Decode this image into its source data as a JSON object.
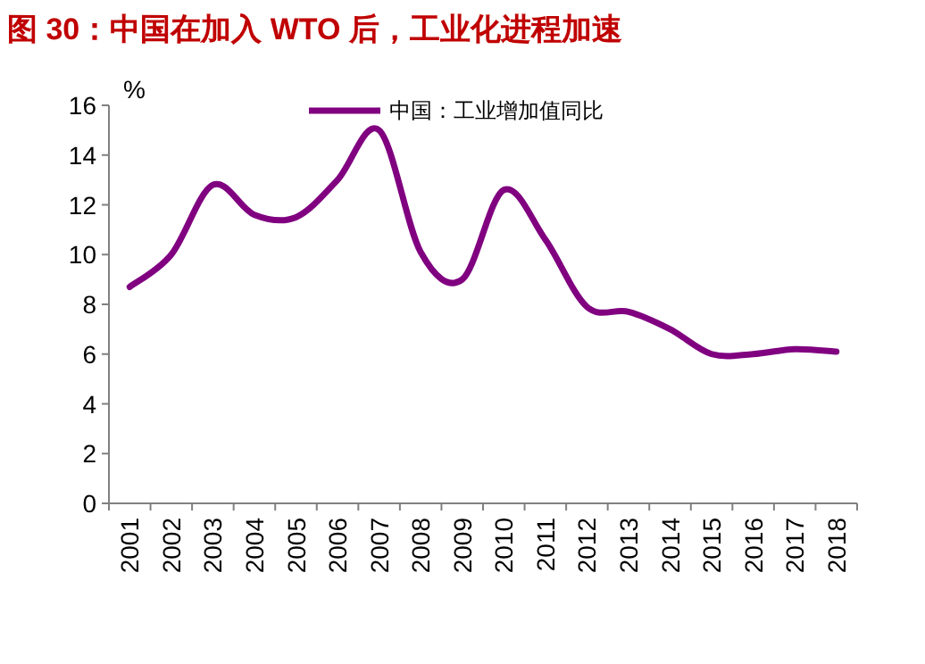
{
  "chart_data": {
    "type": "line",
    "title": "图 30：中国在加入 WTO 后，工业化进程加速",
    "ylabel": "%",
    "categories": [
      "2001",
      "2002",
      "2003",
      "2004",
      "2005",
      "2006",
      "2007",
      "2008",
      "2009",
      "2010",
      "2011",
      "2012",
      "2013",
      "2014",
      "2015",
      "2016",
      "2017",
      "2018"
    ],
    "series": [
      {
        "name": "中国：工业增加值同比",
        "color": "#800080",
        "values": [
          8.7,
          10.0,
          12.8,
          11.6,
          11.5,
          13.0,
          15.0,
          10.1,
          9.0,
          12.6,
          10.6,
          7.9,
          7.7,
          7.0,
          6.0,
          6.0,
          6.2,
          6.1
        ]
      }
    ],
    "ylim": [
      0,
      16
    ],
    "yticks": [
      0,
      2,
      4,
      6,
      8,
      10,
      12,
      14,
      16
    ],
    "grid": false,
    "legend": "top",
    "marker": "none",
    "line_style": "solid"
  }
}
